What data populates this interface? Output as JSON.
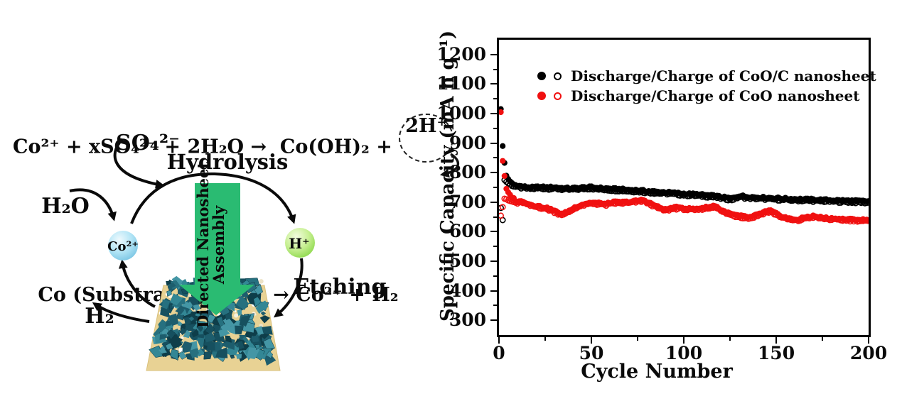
{
  "figure": {
    "background": "#ffffff"
  },
  "equations": {
    "line1_pre": "Co²⁺ + xSO₄²⁻ + 2H₂O →  Co(OH)₂ + ",
    "line1_circled": "2H⁺",
    "line2": "Co (Substrate) + 2H⁺ → Co²⁺ + H₂"
  },
  "diagram": {
    "so4_label": "SO₄²⁻",
    "hydrolysis_label": "Hydrolysis",
    "h2o_label": "H₂O",
    "co_ion_label": "Co²⁺",
    "proton_label": "H⁺",
    "etching_label": "Etching",
    "h2_label": "H₂",
    "assembly_arrow_line1": "Directed Nanosheet",
    "assembly_arrow_line2": "Assembly",
    "assembly_arrow_color": "#2abb72",
    "co_sphere_color": "#9fd9ef",
    "proton_sphere_color": "#a4e15c",
    "substrate_color": "#e8d294",
    "crystal_colors": [
      "#16505f",
      "#1d5d6d",
      "#26707f",
      "#338795",
      "#0e3e4a",
      "#4496a5"
    ]
  },
  "chart_data": {
    "type": "scatter",
    "title": "",
    "xlabel": "Cycle Number",
    "ylabel": "Specific Capacity (mA h g⁻¹)",
    "xlim": [
      0,
      200
    ],
    "ylim": [
      250,
      1250
    ],
    "x_ticks": [
      0,
      50,
      100,
      150,
      200
    ],
    "x_minor_ticks": [
      25,
      75,
      125,
      175
    ],
    "y_ticks": [
      300,
      400,
      500,
      600,
      700,
      800,
      900,
      1000,
      1100,
      1200
    ],
    "y_minor_ticks": [
      350,
      450,
      550,
      650,
      750,
      850,
      950,
      1050,
      1150
    ],
    "grid": false,
    "legend_position": "top-left-inside",
    "legend": [
      {
        "label": "Discharge/Charge of CoO/C nanosheet",
        "color": "#000000"
      },
      {
        "label": "Discharge/Charge of CoO nanosheet",
        "color": "#f01010"
      }
    ],
    "series": [
      {
        "name": "Charge of CoO/C nanosheet",
        "color": "#000000",
        "marker": "open",
        "keypoints": [
          [
            1,
            680
          ],
          [
            2,
            640
          ],
          [
            3,
            775
          ],
          [
            4,
            769
          ],
          [
            5,
            764
          ],
          [
            6,
            760
          ],
          [
            8,
            754
          ],
          [
            10,
            750
          ],
          [
            14,
            747
          ],
          [
            18,
            745
          ],
          [
            22,
            747
          ],
          [
            26,
            745
          ],
          [
            30,
            746
          ],
          [
            34,
            743
          ],
          [
            38,
            742
          ],
          [
            42,
            743
          ],
          [
            46,
            745
          ],
          [
            50,
            746
          ],
          [
            54,
            743
          ],
          [
            58,
            742
          ],
          [
            62,
            740
          ],
          [
            66,
            739
          ],
          [
            70,
            737
          ],
          [
            74,
            736
          ],
          [
            78,
            734
          ],
          [
            82,
            732
          ],
          [
            86,
            730
          ],
          [
            90,
            729
          ],
          [
            94,
            727
          ],
          [
            98,
            725
          ],
          [
            102,
            723
          ],
          [
            106,
            722
          ],
          [
            110,
            720
          ],
          [
            114,
            718
          ],
          [
            118,
            715
          ],
          [
            122,
            711
          ],
          [
            126,
            708
          ],
          [
            130,
            717
          ],
          [
            134,
            714
          ],
          [
            138,
            712
          ],
          [
            142,
            711
          ],
          [
            146,
            710
          ],
          [
            150,
            709
          ],
          [
            155,
            707
          ],
          [
            160,
            706
          ],
          [
            165,
            705
          ],
          [
            170,
            704
          ],
          [
            175,
            703
          ],
          [
            180,
            702
          ],
          [
            185,
            701
          ],
          [
            190,
            700
          ],
          [
            195,
            699
          ],
          [
            200,
            698
          ]
        ]
      },
      {
        "name": "Discharge of CoO/C nanosheet",
        "color": "#000000",
        "marker": "filled",
        "keypoints": [
          [
            1,
            1015
          ],
          [
            2,
            890
          ],
          [
            3,
            833
          ],
          [
            4,
            790
          ],
          [
            5,
            778
          ],
          [
            6,
            770
          ],
          [
            8,
            760
          ],
          [
            10,
            756
          ],
          [
            14,
            752
          ],
          [
            18,
            750
          ],
          [
            22,
            752
          ],
          [
            26,
            750
          ],
          [
            30,
            751
          ],
          [
            34,
            748
          ],
          [
            38,
            747
          ],
          [
            42,
            748
          ],
          [
            46,
            750
          ],
          [
            50,
            751
          ],
          [
            54,
            748
          ],
          [
            58,
            747
          ],
          [
            62,
            745
          ],
          [
            66,
            744
          ],
          [
            70,
            742
          ],
          [
            74,
            741
          ],
          [
            78,
            739
          ],
          [
            82,
            737
          ],
          [
            86,
            735
          ],
          [
            90,
            734
          ],
          [
            94,
            732
          ],
          [
            98,
            730
          ],
          [
            102,
            728
          ],
          [
            106,
            727
          ],
          [
            110,
            725
          ],
          [
            114,
            723
          ],
          [
            118,
            720
          ],
          [
            122,
            716
          ],
          [
            126,
            713
          ],
          [
            130,
            722
          ],
          [
            134,
            719
          ],
          [
            138,
            717
          ],
          [
            142,
            716
          ],
          [
            146,
            715
          ],
          [
            150,
            714
          ],
          [
            155,
            712
          ],
          [
            160,
            711
          ],
          [
            165,
            710
          ],
          [
            170,
            709
          ],
          [
            175,
            708
          ],
          [
            180,
            707
          ],
          [
            185,
            706
          ],
          [
            190,
            705
          ],
          [
            195,
            704
          ],
          [
            200,
            703
          ]
        ]
      },
      {
        "name": "Charge of CoO nanosheet",
        "color": "#f01010",
        "marker": "open",
        "keypoints": [
          [
            1,
            655
          ],
          [
            3,
            712
          ],
          [
            5,
            706
          ],
          [
            8,
            700
          ],
          [
            10,
            696
          ],
          [
            13,
            699
          ],
          [
            16,
            689
          ],
          [
            20,
            684
          ],
          [
            24,
            679
          ],
          [
            28,
            672
          ],
          [
            32,
            661
          ],
          [
            35,
            657
          ],
          [
            38,
            667
          ],
          [
            42,
            682
          ],
          [
            46,
            690
          ],
          [
            50,
            695
          ],
          [
            54,
            693
          ],
          [
            58,
            690
          ],
          [
            62,
            696
          ],
          [
            66,
            696
          ],
          [
            70,
            697
          ],
          [
            74,
            700
          ],
          [
            78,
            704
          ],
          [
            82,
            692
          ],
          [
            86,
            680
          ],
          [
            90,
            671
          ],
          [
            94,
            677
          ],
          [
            98,
            679
          ],
          [
            102,
            674
          ],
          [
            106,
            673
          ],
          [
            110,
            677
          ],
          [
            114,
            680
          ],
          [
            117,
            685
          ],
          [
            120,
            670
          ],
          [
            124,
            659
          ],
          [
            128,
            652
          ],
          [
            132,
            648
          ],
          [
            136,
            645
          ],
          [
            140,
            654
          ],
          [
            144,
            664
          ],
          [
            147,
            667
          ],
          [
            150,
            657
          ],
          [
            154,
            646
          ],
          [
            158,
            639
          ],
          [
            162,
            637
          ],
          [
            166,
            646
          ],
          [
            170,
            649
          ],
          [
            174,
            645
          ],
          [
            178,
            642
          ],
          [
            182,
            640
          ],
          [
            186,
            639
          ],
          [
            190,
            638
          ],
          [
            195,
            637
          ],
          [
            200,
            635
          ]
        ]
      },
      {
        "name": "Discharge of CoO nanosheet",
        "color": "#f01010",
        "marker": "filled",
        "keypoints": [
          [
            1,
            1005
          ],
          [
            2,
            840
          ],
          [
            3,
            788
          ],
          [
            4,
            745
          ],
          [
            5,
            733
          ],
          [
            6,
            725
          ],
          [
            8,
            712
          ],
          [
            10,
            701
          ],
          [
            13,
            704
          ],
          [
            16,
            694
          ],
          [
            20,
            688
          ],
          [
            24,
            683
          ],
          [
            28,
            676
          ],
          [
            32,
            665
          ],
          [
            35,
            661
          ],
          [
            38,
            671
          ],
          [
            42,
            686
          ],
          [
            46,
            694
          ],
          [
            50,
            699
          ],
          [
            54,
            697
          ],
          [
            58,
            694
          ],
          [
            62,
            700
          ],
          [
            66,
            700
          ],
          [
            70,
            701
          ],
          [
            74,
            704
          ],
          [
            78,
            708
          ],
          [
            82,
            696
          ],
          [
            86,
            684
          ],
          [
            90,
            675
          ],
          [
            94,
            681
          ],
          [
            98,
            683
          ],
          [
            102,
            678
          ],
          [
            106,
            677
          ],
          [
            110,
            681
          ],
          [
            114,
            684
          ],
          [
            117,
            689
          ],
          [
            120,
            674
          ],
          [
            124,
            663
          ],
          [
            128,
            656
          ],
          [
            132,
            652
          ],
          [
            136,
            649
          ],
          [
            140,
            658
          ],
          [
            144,
            668
          ],
          [
            147,
            671
          ],
          [
            150,
            661
          ],
          [
            154,
            650
          ],
          [
            158,
            643
          ],
          [
            162,
            641
          ],
          [
            166,
            650
          ],
          [
            170,
            653
          ],
          [
            174,
            649
          ],
          [
            178,
            646
          ],
          [
            182,
            644
          ],
          [
            186,
            643
          ],
          [
            190,
            642
          ],
          [
            195,
            641
          ],
          [
            200,
            639
          ]
        ]
      }
    ]
  }
}
